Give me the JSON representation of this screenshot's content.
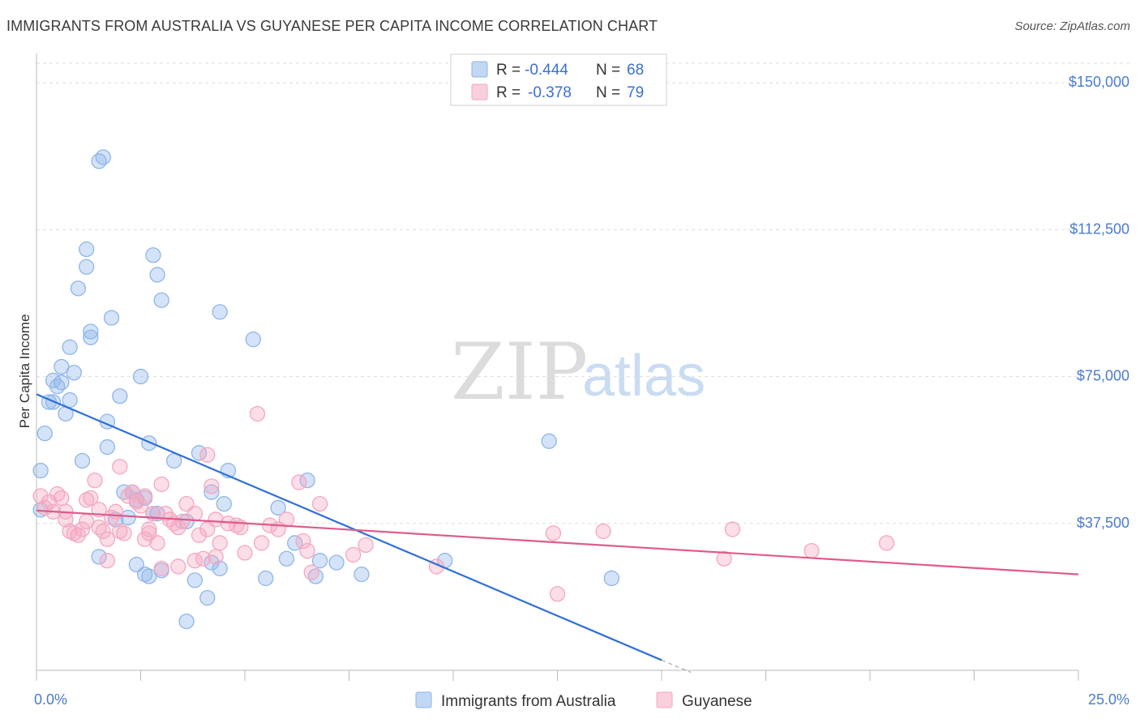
{
  "header": {
    "title": "IMMIGRANTS FROM AUSTRALIA VS GUYANESE PER CAPITA INCOME CORRELATION CHART",
    "source": "Source: ZipAtlas.com"
  },
  "watermark": {
    "zip": "ZIP",
    "atlas": "atlas"
  },
  "legend": {
    "rows": [
      {
        "r_label": "R =",
        "r_value": "-0.444",
        "n_label": "N =",
        "n_value": "68",
        "color": "#8fb6ea"
      },
      {
        "r_label": "R =",
        "r_value": "-0.378",
        "n_label": "N =",
        "n_value": "79",
        "color": "#f4a7c0"
      }
    ]
  },
  "chart_data": {
    "type": "scatter",
    "title": "IMMIGRANTS FROM AUSTRALIA VS GUYANESE PER CAPITA INCOME CORRELATION CHART",
    "xlabel": "",
    "ylabel": "Per Capita Income",
    "xlim": [
      0,
      25
    ],
    "ylim": [
      0,
      155000
    ],
    "x_tick_labels": [
      "0.0%",
      "25.0%"
    ],
    "y_ticks": [
      37500,
      75000,
      112500,
      150000
    ],
    "y_tick_labels": [
      "$37,500",
      "$75,000",
      "$112,500",
      "$150,000"
    ],
    "grid": true,
    "legend_position": "top-center",
    "series": [
      {
        "name": "Immigrants from Australia",
        "color": "#8fb6ea",
        "line_color": "#2e6fd6",
        "trend": {
          "x": [
            0,
            15
          ],
          "y": [
            70500,
            2600
          ]
        },
        "trend_dashed_extension": {
          "x": [
            15,
            15.7
          ],
          "y": [
            2600,
            -500
          ]
        },
        "points": [
          [
            0.1,
            51000
          ],
          [
            0.1,
            41000
          ],
          [
            0.2,
            60500
          ],
          [
            0.3,
            68500
          ],
          [
            0.4,
            68500
          ],
          [
            0.4,
            74000
          ],
          [
            0.5,
            72500
          ],
          [
            0.6,
            73500
          ],
          [
            0.6,
            77500
          ],
          [
            0.7,
            65500
          ],
          [
            0.8,
            69000
          ],
          [
            0.8,
            82500
          ],
          [
            0.9,
            76000
          ],
          [
            1.0,
            97500
          ],
          [
            1.1,
            53500
          ],
          [
            1.2,
            103000
          ],
          [
            1.2,
            107500
          ],
          [
            1.3,
            86500
          ],
          [
            1.3,
            85000
          ],
          [
            1.5,
            130000
          ],
          [
            1.6,
            131000
          ],
          [
            1.7,
            63500
          ],
          [
            1.7,
            57000
          ],
          [
            1.8,
            90000
          ],
          [
            1.9,
            38500
          ],
          [
            2.0,
            70000
          ],
          [
            2.1,
            45500
          ],
          [
            2.2,
            39000
          ],
          [
            2.3,
            45500
          ],
          [
            2.4,
            27000
          ],
          [
            2.5,
            75000
          ],
          [
            2.6,
            44000
          ],
          [
            2.6,
            24500
          ],
          [
            2.7,
            58000
          ],
          [
            2.7,
            24000
          ],
          [
            2.8,
            106000
          ],
          [
            2.8,
            40000
          ],
          [
            2.9,
            101000
          ],
          [
            2.9,
            40000
          ],
          [
            3.0,
            94500
          ],
          [
            3.0,
            25500
          ],
          [
            3.3,
            53500
          ],
          [
            3.6,
            38000
          ],
          [
            3.6,
            12500
          ],
          [
            3.8,
            23000
          ],
          [
            3.9,
            55500
          ],
          [
            4.1,
            18500
          ],
          [
            4.2,
            45500
          ],
          [
            4.2,
            27500
          ],
          [
            4.4,
            91500
          ],
          [
            4.4,
            26000
          ],
          [
            4.5,
            42500
          ],
          [
            4.6,
            51000
          ],
          [
            5.2,
            84500
          ],
          [
            5.5,
            23500
          ],
          [
            5.8,
            41500
          ],
          [
            6.0,
            28500
          ],
          [
            6.2,
            32500
          ],
          [
            6.5,
            48500
          ],
          [
            6.7,
            24000
          ],
          [
            6.8,
            28000
          ],
          [
            7.2,
            27500
          ],
          [
            7.8,
            24500
          ],
          [
            9.8,
            28000
          ],
          [
            12.3,
            58500
          ],
          [
            13.8,
            23500
          ],
          [
            2.4,
            43500
          ],
          [
            1.5,
            29000
          ]
        ]
      },
      {
        "name": "Guyanese",
        "color": "#f4a7c0",
        "line_color": "#e05a8c",
        "trend": {
          "x": [
            0,
            25
          ],
          "y": [
            40800,
            24500
          ]
        },
        "points": [
          [
            0.1,
            44500
          ],
          [
            0.2,
            41500
          ],
          [
            0.3,
            43000
          ],
          [
            0.4,
            40500
          ],
          [
            0.5,
            45000
          ],
          [
            0.6,
            44000
          ],
          [
            0.7,
            38500
          ],
          [
            0.7,
            40500
          ],
          [
            0.8,
            35500
          ],
          [
            0.9,
            35000
          ],
          [
            1.0,
            34500
          ],
          [
            1.1,
            36000
          ],
          [
            1.2,
            43500
          ],
          [
            1.2,
            38000
          ],
          [
            1.3,
            44000
          ],
          [
            1.4,
            48500
          ],
          [
            1.5,
            41000
          ],
          [
            1.5,
            36500
          ],
          [
            1.6,
            35500
          ],
          [
            1.7,
            33500
          ],
          [
            1.7,
            28000
          ],
          [
            1.8,
            39000
          ],
          [
            1.9,
            40500
          ],
          [
            2.0,
            35500
          ],
          [
            2.0,
            52000
          ],
          [
            2.1,
            35000
          ],
          [
            2.2,
            44500
          ],
          [
            2.3,
            45500
          ],
          [
            2.4,
            43000
          ],
          [
            2.5,
            42000
          ],
          [
            2.6,
            44500
          ],
          [
            2.6,
            33500
          ],
          [
            2.7,
            35000
          ],
          [
            2.7,
            36000
          ],
          [
            2.8,
            40000
          ],
          [
            2.9,
            32500
          ],
          [
            3.0,
            26000
          ],
          [
            3.0,
            47500
          ],
          [
            3.1,
            40000
          ],
          [
            3.2,
            38500
          ],
          [
            3.3,
            37500
          ],
          [
            3.4,
            36500
          ],
          [
            3.4,
            26500
          ],
          [
            3.5,
            38000
          ],
          [
            3.6,
            42500
          ],
          [
            3.8,
            40000
          ],
          [
            3.8,
            28000
          ],
          [
            3.9,
            34500
          ],
          [
            4.0,
            28500
          ],
          [
            4.1,
            55000
          ],
          [
            4.1,
            36000
          ],
          [
            4.2,
            47000
          ],
          [
            4.3,
            38500
          ],
          [
            4.3,
            29000
          ],
          [
            4.4,
            32500
          ],
          [
            4.6,
            37500
          ],
          [
            4.8,
            37000
          ],
          [
            4.9,
            36500
          ],
          [
            5.0,
            30000
          ],
          [
            5.3,
            65500
          ],
          [
            5.4,
            32500
          ],
          [
            5.6,
            37000
          ],
          [
            5.8,
            36000
          ],
          [
            6.0,
            38500
          ],
          [
            6.3,
            48000
          ],
          [
            6.4,
            33000
          ],
          [
            6.5,
            30500
          ],
          [
            6.6,
            25000
          ],
          [
            6.8,
            42500
          ],
          [
            7.6,
            29500
          ],
          [
            7.9,
            32000
          ],
          [
            9.6,
            26500
          ],
          [
            12.4,
            35000
          ],
          [
            12.5,
            19500
          ],
          [
            13.6,
            35500
          ],
          [
            16.5,
            28500
          ],
          [
            16.7,
            36000
          ],
          [
            18.6,
            30500
          ],
          [
            20.4,
            32500
          ]
        ]
      }
    ]
  }
}
